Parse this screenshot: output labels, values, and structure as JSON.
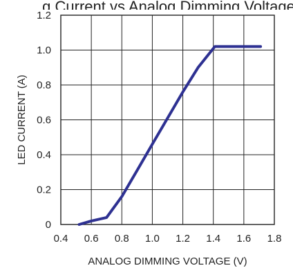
{
  "title_fragment": "g Current vs Analog Dimming Voltage",
  "chart_data": {
    "type": "line",
    "xlabel": "ANALOG DIMMING VOLTAGE (V)",
    "ylabel": "LED CURRENT (A)",
    "xlim": [
      0.4,
      1.8
    ],
    "ylim": [
      0,
      1.2
    ],
    "xticks": [
      "0.4",
      "0.6",
      "0.8",
      "1.0",
      "1.2",
      "1.4",
      "1.6",
      "1.8"
    ],
    "yticks": [
      "0",
      "0.2",
      "0.4",
      "0.6",
      "0.8",
      "1.0",
      "1.2"
    ],
    "grid": true,
    "series": [
      {
        "color": "#2e3192",
        "x": [
          0.52,
          0.6,
          0.7,
          0.8,
          0.9,
          1.0,
          1.1,
          1.2,
          1.3,
          1.41,
          1.5,
          1.6,
          1.71
        ],
        "y": [
          0.0,
          0.02,
          0.04,
          0.16,
          0.31,
          0.46,
          0.61,
          0.76,
          0.9,
          1.02,
          1.02,
          1.02,
          1.02
        ]
      }
    ]
  }
}
